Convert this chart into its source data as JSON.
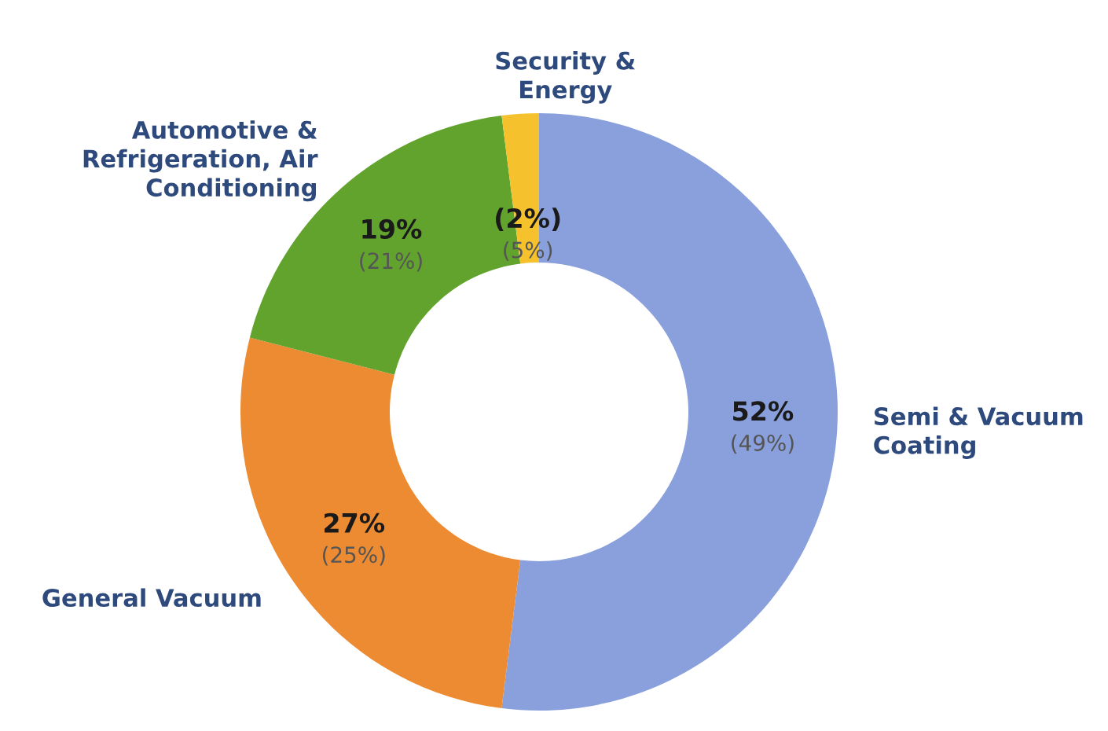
{
  "chart_data": {
    "type": "donut",
    "categories": [
      "Semi & Vacuum\nCoating",
      "General Vacuum",
      "Automotive &\nRefrigeration, Air\nConditioning",
      "Security &\nEnergy"
    ],
    "values": [
      52,
      27,
      19,
      2
    ],
    "colors": [
      "#8aa0dc",
      "#ed8b32",
      "#62a32e",
      "#f5c22e"
    ],
    "value_labels": [
      "52%",
      "27%",
      "19%",
      "(2%)"
    ],
    "annotations": [
      "(49%)",
      "(25%)",
      "(21%)",
      "(5%)"
    ]
  }
}
